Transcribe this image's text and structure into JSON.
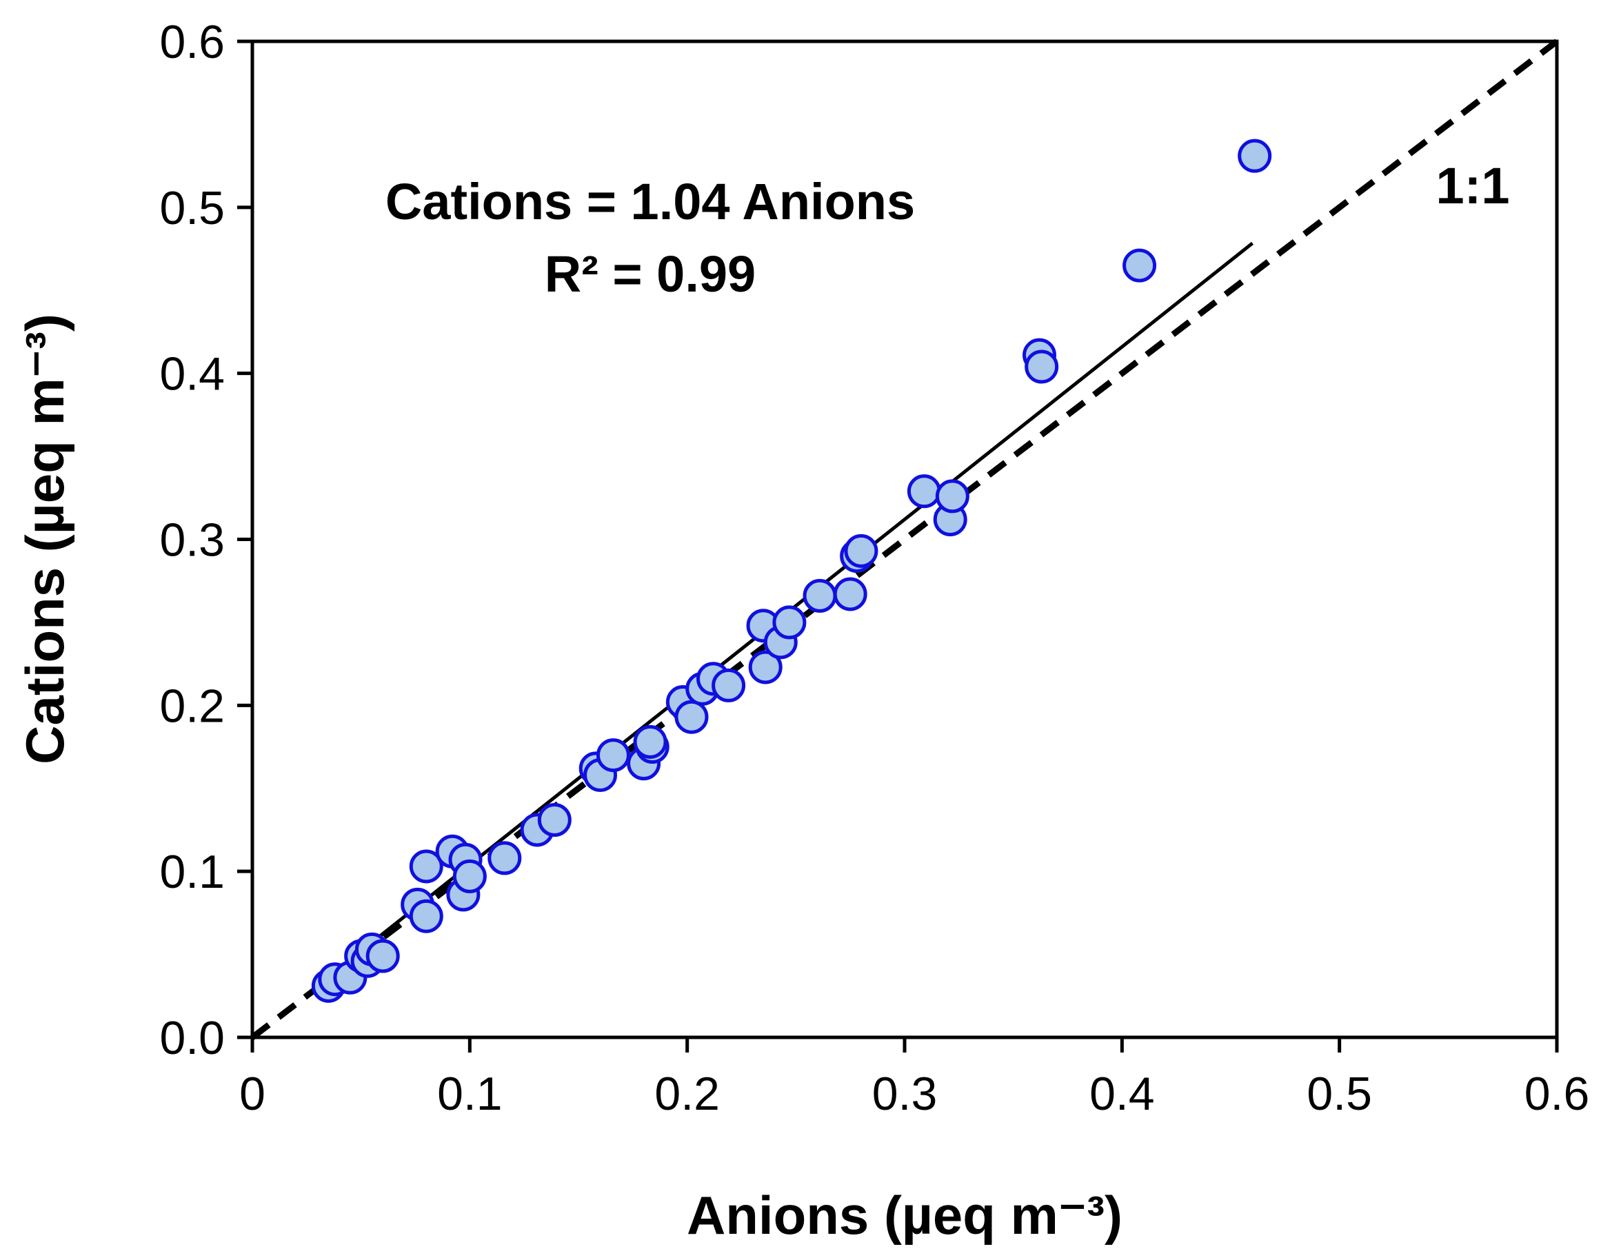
{
  "chart_data": {
    "type": "scatter",
    "xlabel": "Anions (µeq m⁻³)",
    "ylabel": "Cations (µeq m⁻³)",
    "xlim": [
      0,
      0.6
    ],
    "ylim": [
      0,
      0.6
    ],
    "x_ticks": [
      "0",
      "0.1",
      "0.2",
      "0.3",
      "0.4",
      "0.5",
      "0.6"
    ],
    "y_ticks": [
      "0.0",
      "0.1",
      "0.2",
      "0.3",
      "0.4",
      "0.5",
      "0.6"
    ],
    "grid": false,
    "legend": "none",
    "annotations": {
      "equation": "Cations = 1.04 Anions",
      "r2": "R² = 0.99",
      "one_to_one": "1:1"
    },
    "regression": {
      "slope": 1.04,
      "x_range": [
        0.038,
        0.46
      ]
    },
    "reference_line": {
      "slope": 1.0,
      "style": "dashed"
    },
    "colors": {
      "marker_fill": "#aac8ec",
      "marker_edge": "#1010e0",
      "lines": "#000000"
    },
    "points": [
      {
        "x": 0.035,
        "y": 0.031
      },
      {
        "x": 0.038,
        "y": 0.035
      },
      {
        "x": 0.045,
        "y": 0.036
      },
      {
        "x": 0.05,
        "y": 0.049
      },
      {
        "x": 0.053,
        "y": 0.046
      },
      {
        "x": 0.055,
        "y": 0.053
      },
      {
        "x": 0.06,
        "y": 0.049
      },
      {
        "x": 0.076,
        "y": 0.08
      },
      {
        "x": 0.08,
        "y": 0.073
      },
      {
        "x": 0.08,
        "y": 0.103
      },
      {
        "x": 0.092,
        "y": 0.112
      },
      {
        "x": 0.097,
        "y": 0.086
      },
      {
        "x": 0.098,
        "y": 0.107
      },
      {
        "x": 0.1,
        "y": 0.097
      },
      {
        "x": 0.116,
        "y": 0.108
      },
      {
        "x": 0.131,
        "y": 0.125
      },
      {
        "x": 0.139,
        "y": 0.131
      },
      {
        "x": 0.158,
        "y": 0.162
      },
      {
        "x": 0.16,
        "y": 0.158
      },
      {
        "x": 0.166,
        "y": 0.17
      },
      {
        "x": 0.18,
        "y": 0.165
      },
      {
        "x": 0.184,
        "y": 0.175
      },
      {
        "x": 0.183,
        "y": 0.178
      },
      {
        "x": 0.198,
        "y": 0.202
      },
      {
        "x": 0.202,
        "y": 0.193
      },
      {
        "x": 0.207,
        "y": 0.21
      },
      {
        "x": 0.212,
        "y": 0.216
      },
      {
        "x": 0.219,
        "y": 0.212
      },
      {
        "x": 0.235,
        "y": 0.248
      },
      {
        "x": 0.236,
        "y": 0.223
      },
      {
        "x": 0.243,
        "y": 0.238
      },
      {
        "x": 0.247,
        "y": 0.25
      },
      {
        "x": 0.261,
        "y": 0.266
      },
      {
        "x": 0.275,
        "y": 0.267
      },
      {
        "x": 0.278,
        "y": 0.29
      },
      {
        "x": 0.28,
        "y": 0.293
      },
      {
        "x": 0.309,
        "y": 0.329
      },
      {
        "x": 0.321,
        "y": 0.312
      },
      {
        "x": 0.322,
        "y": 0.326
      },
      {
        "x": 0.362,
        "y": 0.411
      },
      {
        "x": 0.363,
        "y": 0.404
      },
      {
        "x": 0.408,
        "y": 0.465
      },
      {
        "x": 0.461,
        "y": 0.531
      }
    ]
  }
}
